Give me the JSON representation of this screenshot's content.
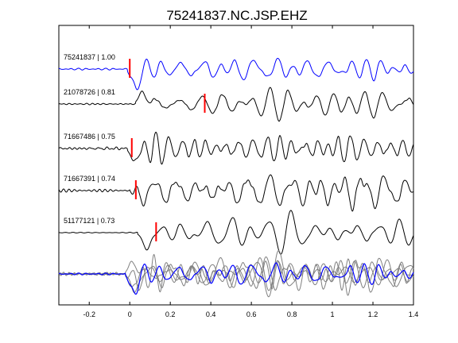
{
  "chart_data": {
    "type": "line",
    "title": "75241837.NC.JSP.EHZ",
    "xlabel": "",
    "ylabel": "",
    "xlim": [
      -0.35,
      1.4
    ],
    "xticks": [
      -0.2,
      0,
      0.2,
      0.4,
      0.6,
      0.8,
      1,
      1.2,
      1.4
    ],
    "xtick_labels": [
      "-0.2",
      "0",
      "0.2",
      "0.4",
      "0.6",
      "0.8",
      "1",
      "1.2",
      "1.4"
    ],
    "grid": false,
    "legend": "none",
    "colors": {
      "master": "#0000ff",
      "neighbor": "#000000",
      "pick": "#ff0000",
      "overlay": "#808080",
      "axes": "#000000"
    },
    "traces": [
      {
        "label": "75241837 | 1.00",
        "event_id": "75241837",
        "cc": 1.0,
        "pick_time": 0.0,
        "onset": -0.01,
        "color": "blue",
        "seed": 1,
        "pre_noise": 0.04,
        "amp": 1.0,
        "freq": 13,
        "first_dip": -1.3
      },
      {
        "label": "21078726 | 0.81",
        "event_id": "21078726",
        "cc": 0.81,
        "pick_time": 0.37,
        "onset": 0.03,
        "color": "black",
        "seed": 2,
        "pre_noise": 0.03,
        "amp": 1.15,
        "freq": 14,
        "first_dip": 0.9
      },
      {
        "label": "71667486 | 0.75",
        "event_id": "71667486",
        "cc": 0.75,
        "pick_time": 0.01,
        "onset": -0.01,
        "color": "black",
        "seed": 3,
        "pre_noise": 0.04,
        "amp": 1.1,
        "freq": 15,
        "first_dip": -0.9
      },
      {
        "label": "71667391 | 0.74",
        "event_id": "71667391",
        "cc": 0.74,
        "pick_time": 0.03,
        "onset": 0.0,
        "color": "black",
        "seed": 4,
        "pre_noise": 0.05,
        "amp": 1.0,
        "freq": 15,
        "first_dip": -0.5
      },
      {
        "label": "51177121 | 0.73",
        "event_id": "51177121",
        "cc": 0.73,
        "pick_time": 0.13,
        "onset": 0.04,
        "color": "black",
        "seed": 5,
        "pre_noise": 0.02,
        "amp": 1.0,
        "freq": 11,
        "first_dip": -1.2
      }
    ],
    "stacked_overlay": {
      "description_visible": false,
      "onset": -0.02,
      "master_color": "blue",
      "others_color": "gray"
    }
  }
}
